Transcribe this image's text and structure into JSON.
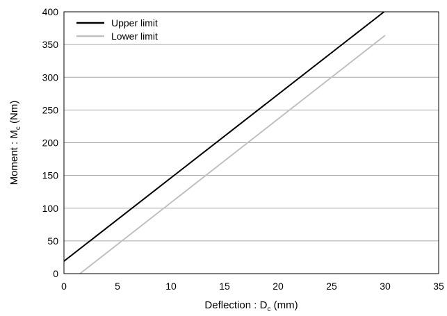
{
  "chart_data": {
    "type": "line",
    "title": "",
    "xlabel": {
      "main": "Deflection : D",
      "sub": "c",
      "unit": " (mm)"
    },
    "ylabel": {
      "main": "Moment : M",
      "sub": "c",
      "unit": " (Nm)"
    },
    "xlim": [
      0,
      35
    ],
    "ylim": [
      0,
      400
    ],
    "xticks": [
      0,
      5,
      10,
      15,
      20,
      25,
      30,
      35
    ],
    "yticks": [
      0,
      50,
      100,
      150,
      200,
      250,
      300,
      350,
      400
    ],
    "grid": "horizontal",
    "legend_position": "top-left",
    "series": [
      {
        "name": "Upper limit",
        "color": "#000000",
        "points": [
          [
            0,
            19
          ],
          [
            29.9,
            400
          ]
        ]
      },
      {
        "name": "Lower limit",
        "color": "#c0c0c0",
        "points": [
          [
            1.5,
            0
          ],
          [
            30,
            364
          ]
        ]
      }
    ]
  }
}
